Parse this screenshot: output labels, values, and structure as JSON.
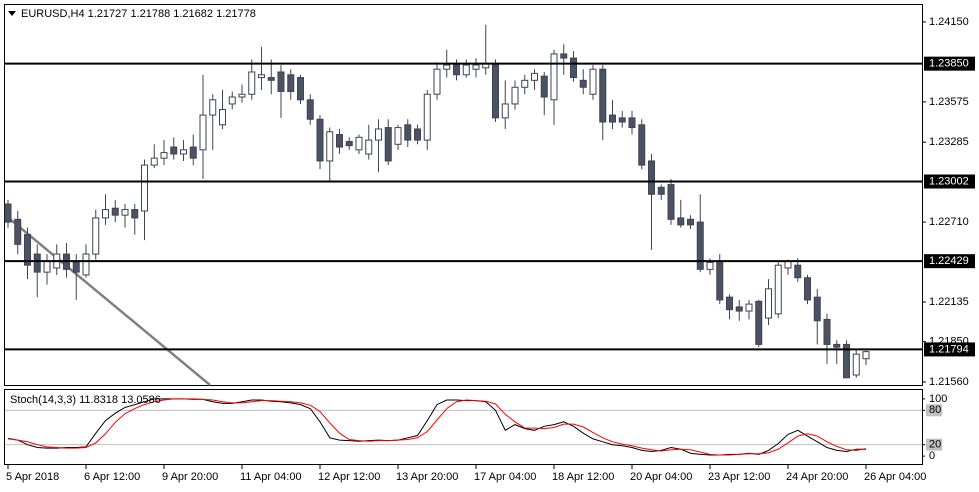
{
  "chart_data": [
    {
      "type": "candlestick",
      "title": "EURUSD,H4 1.21727 1.21788 1.21682 1.21778",
      "categories": [
        "5 Apr 2018",
        null,
        null,
        null,
        null,
        null,
        null,
        null,
        "6 Apr 12:00",
        null,
        null,
        null,
        null,
        null,
        null,
        null,
        "9 Apr 20:00",
        null,
        null,
        null,
        null,
        null,
        null,
        null,
        "11 Apr 04:00",
        null,
        null,
        null,
        null,
        null,
        null,
        null,
        "12 Apr 12:00",
        null,
        null,
        null,
        null,
        null,
        null,
        null,
        "13 Apr 20:00",
        null,
        null,
        null,
        null,
        null,
        null,
        null,
        "17 Apr 04:00",
        null,
        null,
        null,
        null,
        null,
        null,
        null,
        "18 Apr 12:00",
        null,
        null,
        null,
        null,
        null,
        null,
        null,
        "20 Apr 04:00",
        null,
        null,
        null,
        null,
        null,
        null,
        null,
        "23 Apr 12:00",
        null,
        null,
        null,
        null,
        null,
        null,
        null,
        "24 Apr 20:00",
        null,
        null,
        null,
        null,
        null,
        null,
        null,
        "26 Apr 04:00"
      ],
      "open": [
        1.2284,
        1.2273,
        1.2262,
        1.2248,
        1.2235,
        1.2238,
        1.2248,
        1.2243,
        1.2233,
        1.2248,
        1.2274,
        1.2281,
        1.2276,
        1.228,
        1.2279,
        1.2312,
        1.2317,
        1.2325,
        1.232,
        1.2325,
        1.2323,
        1.2348,
        1.2341,
        1.2356,
        1.2361,
        1.2363,
        1.2375,
        1.2375,
        1.2379,
        1.2377,
        1.2375,
        1.2359,
        1.2345,
        1.2315,
        1.2334,
        1.2329,
        1.2323,
        1.232,
        1.233,
        1.2339,
        1.2327,
        1.2341,
        1.2338,
        1.233,
        1.2363,
        1.2381,
        1.2384,
        1.2377,
        1.2381,
        1.2382,
        1.2385,
        1.2346,
        1.2356,
        1.2368,
        1.2373,
        1.2376,
        1.2359,
        1.2392,
        1.2389,
        1.2373,
        1.2363,
        1.2381,
        1.2348,
        1.2346,
        1.2346,
        1.2341,
        1.2315,
        1.2296,
        1.2298,
        1.2274,
        1.2273,
        1.2271,
        1.2237,
        1.2243,
        1.2217,
        1.221,
        1.2207,
        1.2214,
        1.2202,
        1.2205,
        1.2238,
        1.224,
        1.2231,
        1.2217,
        1.2201,
        1.2183,
        1.2183,
        1.2161,
        1.21727
      ],
      "high": [
        1.2287,
        1.2279,
        1.2267,
        1.2255,
        1.2248,
        1.2255,
        1.2256,
        1.2248,
        1.2255,
        1.228,
        1.2291,
        1.2287,
        1.2284,
        1.2284,
        1.2316,
        1.2327,
        1.233,
        1.2332,
        1.233,
        1.2334,
        1.2377,
        1.2363,
        1.2366,
        1.2365,
        1.237,
        1.2388,
        1.2397,
        1.2388,
        1.2384,
        1.2381,
        1.2377,
        1.2363,
        1.2348,
        1.2339,
        1.2338,
        1.2332,
        1.2334,
        1.2341,
        1.2345,
        1.2345,
        1.2341,
        1.2345,
        1.2341,
        1.2366,
        1.2386,
        1.2395,
        1.2388,
        1.2388,
        1.2389,
        1.2413,
        1.2388,
        1.2373,
        1.2373,
        1.2377,
        1.2381,
        1.2379,
        1.2395,
        1.2399,
        1.2394,
        1.2381,
        1.2384,
        1.2384,
        1.2359,
        1.2351,
        1.2351,
        1.2345,
        1.232,
        1.2298,
        1.2302,
        1.2287,
        1.2276,
        1.2291,
        1.2245,
        1.2248,
        1.2219,
        1.2215,
        1.2215,
        1.2215,
        1.223,
        1.2243,
        1.2244,
        1.2245,
        1.2233,
        1.2223,
        1.2205,
        1.2186,
        1.2186,
        1.2179,
        1.21788
      ],
      "low": [
        1.2267,
        1.2248,
        1.223,
        1.2217,
        1.2226,
        1.2233,
        1.2231,
        1.2215,
        1.2231,
        1.2244,
        1.2269,
        1.2271,
        1.2267,
        1.2262,
        1.2258,
        1.231,
        1.2312,
        1.2316,
        1.2315,
        1.2312,
        1.2302,
        1.2323,
        1.2338,
        1.2352,
        1.2357,
        1.2359,
        1.2366,
        1.2363,
        1.2346,
        1.2359,
        1.2356,
        1.2341,
        1.2309,
        1.23,
        1.232,
        1.2323,
        1.232,
        1.2316,
        1.2307,
        1.2312,
        1.2323,
        1.2325,
        1.2327,
        1.2323,
        1.2359,
        1.2375,
        1.2373,
        1.2375,
        1.2375,
        1.2377,
        1.2343,
        1.2338,
        1.2352,
        1.2363,
        1.2366,
        1.2348,
        1.2341,
        1.2377,
        1.2372,
        1.2363,
        1.2359,
        1.233,
        1.2338,
        1.2339,
        1.2334,
        1.2309,
        1.2251,
        1.2287,
        1.2269,
        1.2267,
        1.2266,
        1.2235,
        1.2233,
        1.2212,
        1.2201,
        1.22,
        1.2201,
        1.2181,
        1.2197,
        1.2202,
        1.2233,
        1.2228,
        1.2212,
        1.2183,
        1.2169,
        1.2169,
        1.2159,
        1.2159,
        1.21682
      ],
      "close": [
        1.2271,
        1.2255,
        1.224,
        1.2235,
        1.2243,
        1.2248,
        1.2237,
        1.2235,
        1.2248,
        1.2274,
        1.228,
        1.2276,
        1.228,
        1.2274,
        1.2312,
        1.2317,
        1.2321,
        1.232,
        1.2323,
        1.2317,
        1.2348,
        1.2359,
        1.2352,
        1.2361,
        1.2363,
        1.2379,
        1.2377,
        1.2373,
        1.2365,
        1.2365,
        1.2359,
        1.2345,
        1.2315,
        1.2336,
        1.2325,
        1.2326,
        1.2332,
        1.233,
        1.2338,
        1.2315,
        1.2339,
        1.233,
        1.233,
        1.2363,
        1.2381,
        1.2384,
        1.2377,
        1.2384,
        1.2384,
        1.2385,
        1.2346,
        1.2356,
        1.2368,
        1.2373,
        1.2378,
        1.2361,
        1.2392,
        1.2389,
        1.2375,
        1.2368,
        1.2381,
        1.2343,
        1.2343,
        1.2343,
        1.2339,
        1.2312,
        1.2291,
        1.2291,
        1.2273,
        1.2269,
        1.2269,
        1.2237,
        1.2242,
        1.2215,
        1.2208,
        1.2207,
        1.2212,
        1.2183,
        1.2223,
        1.224,
        1.2243,
        1.2231,
        1.2215,
        1.22,
        1.2183,
        1.2181,
        1.2159,
        1.2176,
        1.21778
      ],
      "up_color": "#ffffff",
      "down_color": "#4a5263",
      "line_color": "#3d4452",
      "ylim": [
        1.21538,
        1.24272
      ],
      "yticks": [
        {
          "value": 1.2415,
          "label": "1.24150"
        },
        {
          "value": 1.23575,
          "label": "1.23575"
        },
        {
          "value": 1.23285,
          "label": "1.23285"
        },
        {
          "value": 1.2271,
          "label": "1.22710"
        },
        {
          "value": 1.22135,
          "label": "1.22135"
        },
        {
          "value": 1.2185,
          "label": "1.21850"
        },
        {
          "value": 1.2156,
          "label": "1.21560"
        }
      ],
      "hlines": [
        {
          "value": 1.2385,
          "label": "1.23850"
        },
        {
          "value": 1.23002,
          "label": "1.23002"
        },
        {
          "value": 1.22429,
          "label": "1.22429"
        },
        {
          "value": 1.21794,
          "label": "1.21794"
        }
      ]
    },
    {
      "type": "line",
      "title": "Stoch(14,3,3) 11.8318 13.0586",
      "series": [
        {
          "color": "#000000",
          "values": [
            31,
            28,
            20,
            15,
            14,
            14,
            15,
            15,
            16,
            40,
            62,
            75,
            85,
            90,
            95,
            100,
            100,
            100,
            100,
            99,
            99,
            95,
            92,
            92,
            95,
            98,
            98,
            96,
            95,
            93,
            90,
            83,
            60,
            32,
            28,
            27,
            26,
            27,
            28,
            27,
            28,
            32,
            36,
            62,
            90,
            98,
            98,
            97,
            97,
            95,
            80,
            45,
            55,
            48,
            45,
            52,
            55,
            60,
            52,
            40,
            30,
            25,
            20,
            18,
            15,
            10,
            8,
            10,
            15,
            12,
            5,
            3,
            2,
            2,
            3,
            3,
            5,
            3,
            10,
            22,
            38,
            45,
            35,
            25,
            15,
            10,
            8,
            12,
            11.8318
          ]
        },
        {
          "color": "#ff0000",
          "values": [
            30,
            28,
            25,
            20,
            16,
            15,
            14,
            14,
            15,
            23,
            39,
            59,
            74,
            83,
            90,
            95,
            98,
            100,
            100,
            100,
            99,
            98,
            95,
            93,
            93,
            95,
            97,
            97,
            96,
            95,
            93,
            89,
            78,
            58,
            40,
            29,
            27,
            26,
            27,
            27,
            28,
            29,
            32,
            43,
            63,
            83,
            95,
            98,
            97,
            96,
            91,
            73,
            60,
            49,
            49,
            48,
            50,
            56,
            56,
            51,
            41,
            32,
            25,
            21,
            18,
            14,
            11,
            9,
            11,
            12,
            11,
            7,
            3,
            2,
            2,
            3,
            4,
            4,
            6,
            12,
            23,
            35,
            39,
            35,
            25,
            17,
            11,
            10,
            13.0586
          ]
        }
      ],
      "ylim": [
        -13.8,
        115.5
      ],
      "yticks": [
        100,
        80,
        20,
        0
      ],
      "levels": [
        80,
        20
      ]
    }
  ]
}
